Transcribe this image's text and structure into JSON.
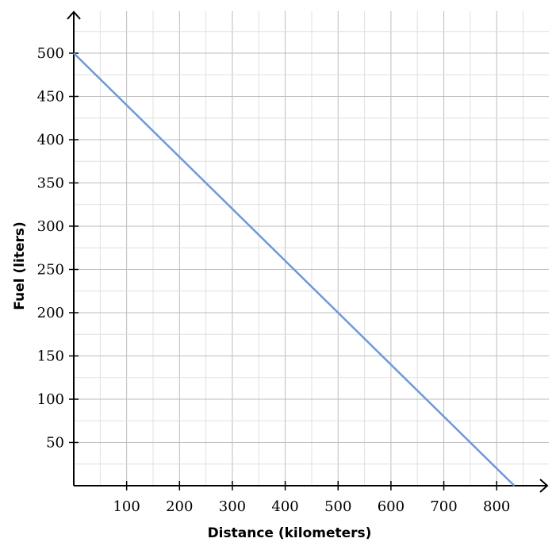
{
  "chart_data": {
    "type": "line",
    "title": "",
    "xlabel": "Distance (kilometers)",
    "ylabel": "Fuel (liters)",
    "xlim": [
      0,
      900
    ],
    "ylim": [
      0,
      550
    ],
    "x_ticks": [
      100,
      200,
      300,
      400,
      500,
      600,
      700,
      800
    ],
    "y_ticks": [
      50,
      100,
      150,
      200,
      250,
      300,
      350,
      400,
      450,
      500
    ],
    "x_tick_labels": [
      "100",
      "200",
      "300",
      "400",
      "500",
      "600",
      "700",
      "800"
    ],
    "y_tick_labels": [
      "50",
      "100",
      "150",
      "200",
      "250",
      "300",
      "350",
      "400",
      "450",
      "500"
    ],
    "grid": true,
    "series": [
      {
        "x": [
          0,
          833.3
        ],
        "y": [
          500,
          0
        ],
        "color": "#6e98dc"
      }
    ]
  }
}
